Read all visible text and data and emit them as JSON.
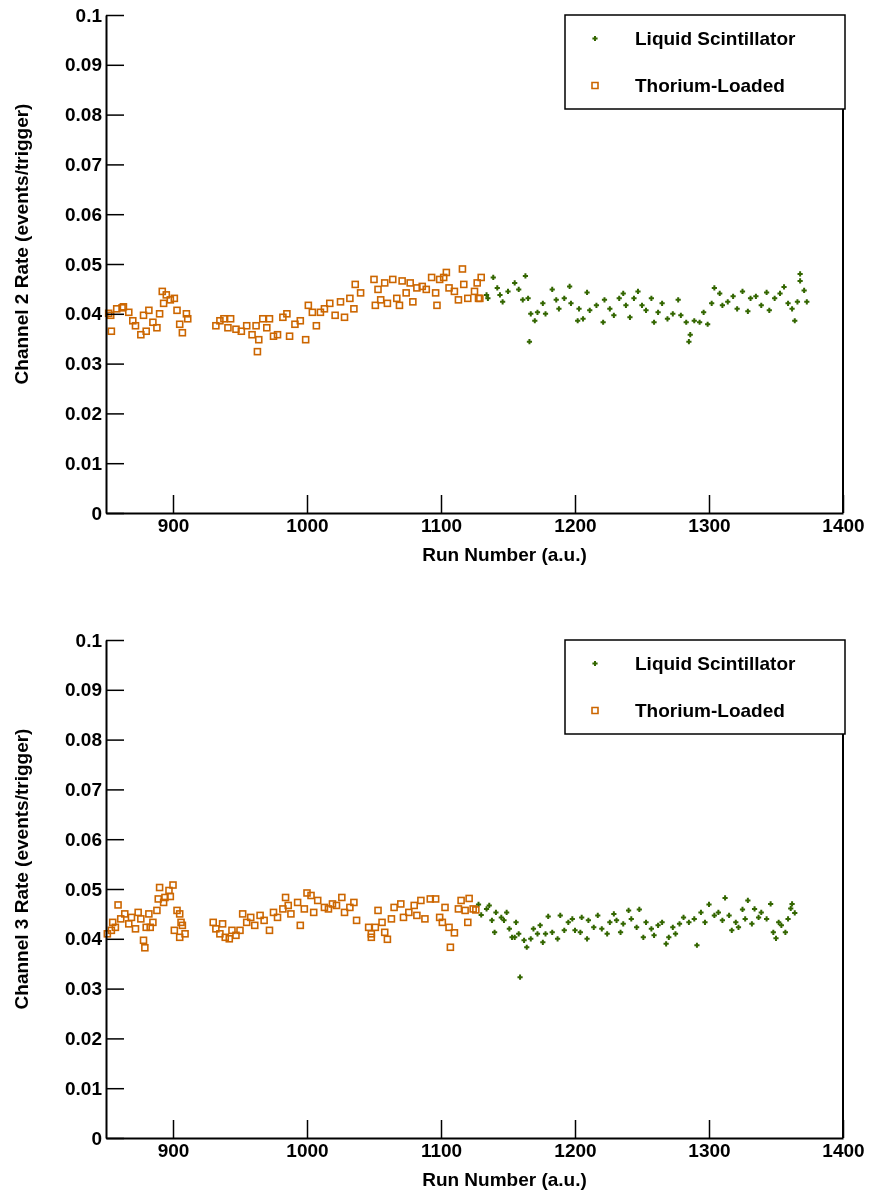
{
  "chart_data": [
    {
      "type": "scatter",
      "xlabel": "Run Number (a.u.)",
      "ylabel": "Channel 2 Rate (events/trigger)",
      "legend": "top right",
      "grid": false,
      "xlim": [
        850,
        1400
      ],
      "ylim": [
        0,
        0.1
      ],
      "xticks": [
        900,
        1000,
        1100,
        1200,
        1300,
        1400
      ],
      "yticks": [
        0,
        0.01,
        0.02,
        0.03,
        0.04,
        0.05,
        0.06,
        0.07,
        0.08,
        0.09,
        0.1
      ],
      "series": [
        {
          "name": "Liquid Scintillator",
          "color": "#336600",
          "marker": "cross",
          "x": [
            1134,
            1135,
            1139,
            1142,
            1144,
            1146,
            1150,
            1155,
            1158,
            1161,
            1163,
            1165,
            1166,
            1167,
            1170,
            1172,
            1176,
            1178,
            1183,
            1186,
            1188,
            1192,
            1196,
            1197,
            1202,
            1203,
            1206,
            1209,
            1211,
            1216,
            1221,
            1222,
            1226,
            1229,
            1233,
            1236,
            1238,
            1241,
            1244,
            1247,
            1250,
            1253,
            1257,
            1259,
            1262,
            1265,
            1269,
            1273,
            1277,
            1279,
            1283,
            1285,
            1286,
            1289,
            1293,
            1296,
            1299,
            1302,
            1304,
            1308,
            1310,
            1314,
            1318,
            1321,
            1325,
            1329,
            1331,
            1335,
            1339,
            1343,
            1345,
            1349,
            1353,
            1356,
            1359,
            1362,
            1364,
            1366,
            1368,
            1368,
            1371,
            1373
          ],
          "values": [
            0.0438,
            0.0431,
            0.0473,
            0.0452,
            0.0438,
            0.0424,
            0.0445,
            0.0462,
            0.0449,
            0.0428,
            0.0476,
            0.0431,
            0.0344,
            0.04,
            0.0386,
            0.0403,
            0.0421,
            0.04,
            0.0449,
            0.0428,
            0.041,
            0.0431,
            0.0455,
            0.0421,
            0.0386,
            0.041,
            0.039,
            0.0443,
            0.0407,
            0.0417,
            0.0383,
            0.0428,
            0.041,
            0.0397,
            0.0431,
            0.0441,
            0.0417,
            0.0393,
            0.0431,
            0.0445,
            0.0417,
            0.0407,
            0.0431,
            0.0383,
            0.0403,
            0.0421,
            0.039,
            0.04,
            0.0428,
            0.0397,
            0.0383,
            0.0344,
            0.0358,
            0.0386,
            0.0383,
            0.0403,
            0.0379,
            0.0421,
            0.0452,
            0.0441,
            0.0417,
            0.0424,
            0.0435,
            0.041,
            0.0445,
            0.0405,
            0.0431,
            0.0435,
            0.0417,
            0.0443,
            0.0407,
            0.0431,
            0.0441,
            0.0454,
            0.0421,
            0.041,
            0.0386,
            0.0424,
            0.048,
            0.0466,
            0.0447,
            0.0424
          ]
        },
        {
          "name": "Thorium-Loaded",
          "color": "#cc6600",
          "marker": "square",
          "x": [
            852,
            853.5,
            854,
            858,
            862,
            863,
            867,
            870,
            872,
            876,
            878,
            880,
            882,
            885,
            888,
            890,
            892,
            893,
            895,
            898,
            901,
            903,
            905,
            907,
            910,
            911,
            932,
            935,
            938,
            941,
            943,
            947,
            951,
            955,
            959,
            962,
            964,
            963,
            967,
            970,
            972,
            975,
            978,
            982,
            985,
            987,
            991,
            995,
            999,
            1001,
            1004,
            1007,
            1010,
            1013,
            1017,
            1021,
            1025,
            1028,
            1032,
            1035,
            1036,
            1040,
            1050,
            1051,
            1053,
            1055,
            1058,
            1060,
            1064,
            1067,
            1069,
            1071,
            1074,
            1077,
            1079,
            1082,
            1086,
            1089,
            1093,
            1096,
            1097,
            1099,
            1102,
            1104,
            1106,
            1110,
            1113,
            1116,
            1117,
            1120,
            1125,
            1127,
            1129,
            1128,
            1130
          ],
          "values": [
            0.0401,
            0.0397,
            0.0365,
            0.041,
            0.0412,
            0.0414,
            0.0403,
            0.0386,
            0.0376,
            0.0358,
            0.0397,
            0.0365,
            0.0407,
            0.0383,
            0.0372,
            0.04,
            0.0445,
            0.0421,
            0.0438,
            0.0428,
            0.0431,
            0.0407,
            0.0379,
            0.0362,
            0.04,
            0.039,
            0.0376,
            0.0386,
            0.039,
            0.0372,
            0.039,
            0.0369,
            0.0365,
            0.0376,
            0.0358,
            0.0376,
            0.0348,
            0.0324,
            0.039,
            0.0372,
            0.039,
            0.0355,
            0.0358,
            0.0393,
            0.04,
            0.0355,
            0.0379,
            0.0386,
            0.0348,
            0.0417,
            0.0403,
            0.0376,
            0.0403,
            0.041,
            0.0421,
            0.0397,
            0.0424,
            0.0393,
            0.0431,
            0.041,
            0.0459,
            0.0442,
            0.0469,
            0.0417,
            0.0449,
            0.0428,
            0.0462,
            0.0421,
            0.0469,
            0.0431,
            0.0417,
            0.0466,
            0.0442,
            0.0462,
            0.0424,
            0.0452,
            0.0455,
            0.0449,
            0.0473,
            0.0442,
            0.0417,
            0.0469,
            0.0473,
            0.0483,
            0.0452,
            0.0445,
            0.0428,
            0.049,
            0.0459,
            0.0431,
            0.0445,
            0.0462,
            0.0431,
            0.0431,
            0.0473
          ]
        }
      ]
    },
    {
      "type": "scatter",
      "xlabel": "Run Number (a.u.)",
      "ylabel": "Channel 3 Rate (events/trigger)",
      "legend": "top right",
      "grid": false,
      "xlim": [
        850,
        1400
      ],
      "ylim": [
        0,
        0.1
      ],
      "xticks": [
        900,
        1000,
        1100,
        1200,
        1300,
        1400
      ],
      "yticks": [
        0,
        0.01,
        0.02,
        0.03,
        0.04,
        0.05,
        0.06,
        0.07,
        0.08,
        0.09,
        0.1
      ],
      "series": [
        {
          "name": "Liquid Scintillator",
          "color": "#336600",
          "marker": "cross",
          "x": [
            1128,
            1130,
            1134,
            1136,
            1138,
            1140,
            1141,
            1145,
            1147,
            1149,
            1151,
            1153,
            1155,
            1156,
            1158,
            1159,
            1162,
            1164,
            1167,
            1169,
            1172,
            1174,
            1176,
            1178,
            1180,
            1183,
            1187,
            1189,
            1192,
            1195,
            1198,
            1200,
            1204,
            1205,
            1209,
            1210,
            1214,
            1217,
            1220,
            1224,
            1226,
            1229,
            1231,
            1234,
            1236,
            1240,
            1242,
            1246,
            1248,
            1251,
            1253,
            1257,
            1259,
            1262,
            1265,
            1268,
            1270,
            1273,
            1275,
            1278,
            1281,
            1285,
            1289,
            1291,
            1294,
            1297,
            1300,
            1304,
            1307,
            1310,
            1312,
            1315,
            1317,
            1320,
            1322,
            1325,
            1327,
            1329,
            1332,
            1334,
            1337,
            1339,
            1343,
            1346,
            1348,
            1350,
            1352,
            1354,
            1357,
            1359,
            1361,
            1362,
            1364
          ],
          "values": [
            0.0469,
            0.0448,
            0.046,
            0.0467,
            0.0437,
            0.0413,
            0.0453,
            0.0443,
            0.0437,
            0.0453,
            0.042,
            0.0403,
            0.0403,
            0.0433,
            0.041,
            0.0323,
            0.0397,
            0.0383,
            0.04,
            0.042,
            0.041,
            0.0427,
            0.0393,
            0.041,
            0.0445,
            0.0413,
            0.04,
            0.0447,
            0.0417,
            0.0433,
            0.044,
            0.0417,
            0.0413,
            0.0443,
            0.04,
            0.0437,
            0.0423,
            0.0447,
            0.042,
            0.041,
            0.0433,
            0.045,
            0.0437,
            0.0413,
            0.043,
            0.0457,
            0.044,
            0.0423,
            0.0459,
            0.0403,
            0.0433,
            0.042,
            0.0407,
            0.0427,
            0.0433,
            0.039,
            0.0403,
            0.0423,
            0.041,
            0.043,
            0.0443,
            0.0433,
            0.044,
            0.0387,
            0.0453,
            0.0433,
            0.0469,
            0.0447,
            0.0453,
            0.0437,
            0.0482,
            0.0447,
            0.0417,
            0.0433,
            0.0423,
            0.0459,
            0.044,
            0.0477,
            0.043,
            0.046,
            0.0443,
            0.0453,
            0.044,
            0.047,
            0.0413,
            0.0401,
            0.0433,
            0.0427,
            0.0413,
            0.044,
            0.0461,
            0.047,
            0.0452
          ]
        },
        {
          "name": "Thorium-Loaded",
          "color": "#cc6600",
          "marker": "square",
          "x": [
            851,
            854,
            855,
            857,
            859,
            861,
            864,
            867,
            869,
            872,
            874,
            876,
            878,
            879,
            880,
            882,
            883,
            885,
            888,
            889,
            890,
            893,
            894,
            897,
            898,
            900,
            901,
            903,
            905,
            906,
            907,
            909,
            905,
            930,
            932,
            935,
            937,
            939,
            942,
            944,
            947,
            950,
            952,
            955,
            958,
            961,
            965,
            968,
            972,
            975,
            978,
            982,
            984,
            986,
            988,
            993,
            995,
            998,
            1000,
            1003,
            1005,
            1008,
            1013,
            1016,
            1019,
            1022,
            1026,
            1028,
            1032,
            1035,
            1037,
            1046,
            1048,
            1048,
            1051,
            1053,
            1056,
            1058,
            1060,
            1063,
            1065,
            1070,
            1072,
            1076,
            1080,
            1082,
            1085,
            1088,
            1092,
            1096,
            1099,
            1101,
            1103,
            1106,
            1107,
            1110,
            1113,
            1115,
            1118,
            1120,
            1121,
            1124,
            1126
          ],
          "values": [
            0.041,
            0.0417,
            0.0433,
            0.0423,
            0.0468,
            0.044,
            0.045,
            0.043,
            0.0443,
            0.042,
            0.0453,
            0.044,
            0.0397,
            0.0382,
            0.0423,
            0.045,
            0.0423,
            0.0433,
            0.0457,
            0.048,
            0.0503,
            0.0473,
            0.0483,
            0.0497,
            0.0485,
            0.0508,
            0.0417,
            0.0457,
            0.045,
            0.0433,
            0.0427,
            0.041,
            0.0403,
            0.0433,
            0.042,
            0.041,
            0.043,
            0.0403,
            0.04,
            0.0417,
            0.0407,
            0.0417,
            0.045,
            0.0433,
            0.0443,
            0.0427,
            0.0447,
            0.0437,
            0.0417,
            0.0453,
            0.0443,
            0.046,
            0.0483,
            0.0467,
            0.045,
            0.0473,
            0.0427,
            0.046,
            0.0492,
            0.0487,
            0.0453,
            0.0477,
            0.0463,
            0.046,
            0.047,
            0.0467,
            0.0483,
            0.0453,
            0.0463,
            0.0473,
            0.0437,
            0.0423,
            0.041,
            0.0403,
            0.0423,
            0.0457,
            0.0433,
            0.0413,
            0.0399,
            0.044,
            0.0463,
            0.047,
            0.0443,
            0.0453,
            0.0467,
            0.0447,
            0.0477,
            0.044,
            0.048,
            0.048,
            0.0443,
            0.0433,
            0.0463,
            0.0423,
            0.0383,
            0.0412,
            0.046,
            0.0477,
            0.0457,
            0.0433,
            0.0481,
            0.046,
            0.0458
          ]
        }
      ]
    }
  ]
}
